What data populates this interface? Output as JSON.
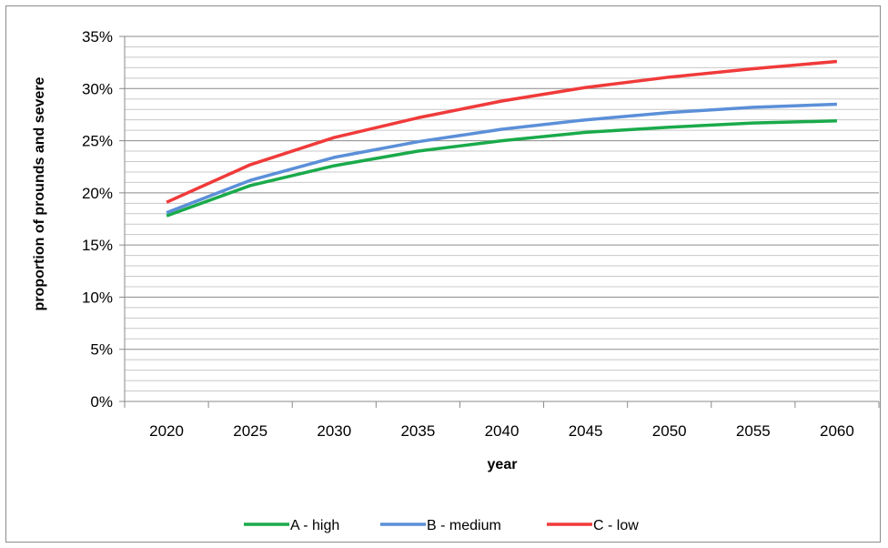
{
  "chart_data": {
    "type": "line",
    "title": "",
    "xlabel": "year",
    "ylabel": "proportion of prounds and severe",
    "x": [
      2020,
      2025,
      2030,
      2035,
      2040,
      2045,
      2050,
      2055,
      2060
    ],
    "x_tick_labels": [
      "2020",
      "2025",
      "2030",
      "2035",
      "2040",
      "2045",
      "2050",
      "2055",
      "2060"
    ],
    "y_tick_labels": [
      "0%",
      "5%",
      "10%",
      "15%",
      "20%",
      "25%",
      "30%",
      "35%"
    ],
    "ylim": [
      0,
      35
    ],
    "y_tick_step": 5,
    "y_minor_step": 1,
    "grid": true,
    "legend_position": "bottom",
    "series": [
      {
        "name": "A - high",
        "color": "#1aaa4b",
        "values": [
          17.8,
          20.7,
          22.6,
          24.0,
          25.0,
          25.8,
          26.3,
          26.7,
          26.9
        ]
      },
      {
        "name": "B - medium",
        "color": "#5b8fd8",
        "values": [
          18.1,
          21.2,
          23.4,
          24.9,
          26.1,
          27.0,
          27.7,
          28.2,
          28.5
        ]
      },
      {
        "name": "C - low",
        "color": "#f03a3a",
        "values": [
          19.1,
          22.7,
          25.3,
          27.2,
          28.8,
          30.1,
          31.1,
          31.9,
          32.6
        ]
      }
    ]
  }
}
